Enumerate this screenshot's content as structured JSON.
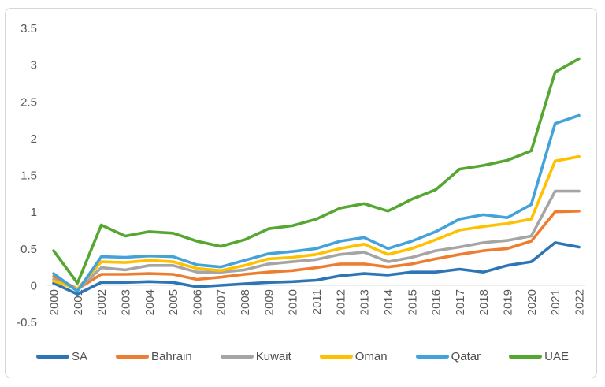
{
  "chart_data": {
    "type": "line",
    "title": "",
    "xlabel": "",
    "ylabel": "",
    "ylim": [
      -0.5,
      3.5
    ],
    "grid": false,
    "legend_position": "bottom",
    "axis_color": "#d9d9d9",
    "tick_label_color": "#595959",
    "y_ticks": [
      {
        "label": "3.5",
        "value": 3.5
      },
      {
        "label": "3",
        "value": 3.0
      },
      {
        "label": "2.5",
        "value": 2.5
      },
      {
        "label": "2",
        "value": 2.0
      },
      {
        "label": "1.5",
        "value": 1.5
      },
      {
        "label": "1",
        "value": 1.0
      },
      {
        "label": "0.5",
        "value": 0.5
      },
      {
        "label": "0",
        "value": 0.0
      },
      {
        "label": "-0.5",
        "value": -0.5
      }
    ],
    "categories": [
      "2000",
      "2001",
      "2002",
      "2003",
      "2004",
      "2005",
      "2006",
      "2007",
      "2008",
      "2009",
      "2010",
      "2011",
      "2012",
      "2013",
      "2014",
      "2015",
      "2016",
      "2017",
      "2018",
      "2019",
      "2020",
      "2021",
      "2022"
    ],
    "series": [
      {
        "name": "SA",
        "color": "#2E75B6",
        "values": [
          0.03,
          -0.12,
          0.04,
          0.04,
          0.05,
          0.04,
          -0.02,
          0.0,
          0.02,
          0.04,
          0.05,
          0.07,
          0.13,
          0.16,
          0.14,
          0.18,
          0.18,
          0.22,
          0.18,
          0.27,
          0.32,
          0.58,
          0.52
        ]
      },
      {
        "name": "Bahrain",
        "color": "#ED7D31",
        "values": [
          0.12,
          -0.05,
          0.15,
          0.15,
          0.16,
          0.15,
          0.08,
          0.11,
          0.15,
          0.18,
          0.2,
          0.24,
          0.29,
          0.29,
          0.25,
          0.29,
          0.36,
          0.42,
          0.47,
          0.5,
          0.6,
          1.0,
          1.01
        ]
      },
      {
        "name": "Kuwait",
        "color": "#A5A5A5",
        "values": [
          0.08,
          -0.06,
          0.24,
          0.21,
          0.27,
          0.27,
          0.18,
          0.18,
          0.21,
          0.29,
          0.32,
          0.35,
          0.42,
          0.45,
          0.32,
          0.38,
          0.47,
          0.52,
          0.58,
          0.61,
          0.67,
          1.28,
          1.28
        ]
      },
      {
        "name": "Oman",
        "color": "#FFC000",
        "values": [
          0.06,
          -0.05,
          0.32,
          0.31,
          0.34,
          0.32,
          0.23,
          0.2,
          0.27,
          0.36,
          0.38,
          0.42,
          0.5,
          0.56,
          0.42,
          0.5,
          0.62,
          0.75,
          0.8,
          0.84,
          0.9,
          1.69,
          1.75
        ]
      },
      {
        "name": "Qatar",
        "color": "#43A2DA",
        "values": [
          0.16,
          -0.08,
          0.39,
          0.38,
          0.4,
          0.39,
          0.28,
          0.25,
          0.34,
          0.43,
          0.46,
          0.5,
          0.6,
          0.65,
          0.5,
          0.6,
          0.73,
          0.9,
          0.96,
          0.92,
          1.1,
          2.2,
          2.31
        ]
      },
      {
        "name": "UAE",
        "color": "#56A632",
        "values": [
          0.47,
          0.03,
          0.82,
          0.67,
          0.73,
          0.71,
          0.6,
          0.53,
          0.62,
          0.77,
          0.81,
          0.9,
          1.05,
          1.11,
          1.01,
          1.17,
          1.3,
          1.58,
          1.63,
          1.7,
          1.83,
          2.9,
          3.08
        ]
      }
    ]
  }
}
